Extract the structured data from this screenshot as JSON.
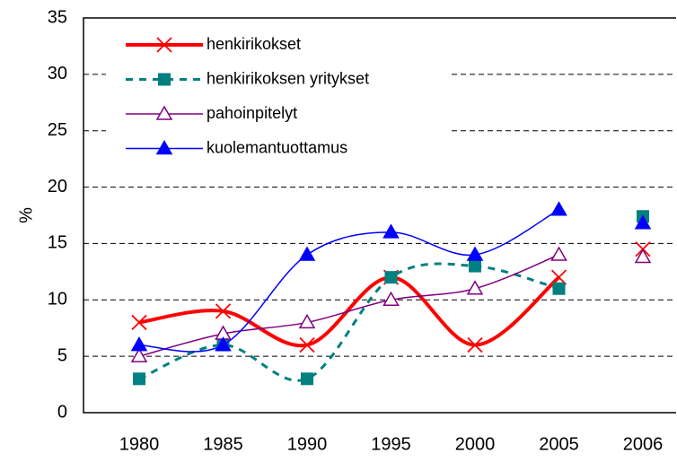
{
  "chart_data": {
    "type": "line",
    "ylabel": "%",
    "categories": [
      "1980",
      "1985",
      "1990",
      "1995",
      "2000",
      "2005",
      "2006"
    ],
    "series": [
      {
        "name": "henkirikokset",
        "color": "#ff0000",
        "marker": "x",
        "line_width": 4,
        "dashed": false,
        "values": [
          8,
          9,
          6,
          12,
          6,
          12,
          14.5
        ]
      },
      {
        "name": "henkirikoksen yritykset",
        "color": "#008080",
        "marker": "square",
        "line_width": 3,
        "dashed": true,
        "values": [
          3,
          6,
          3,
          12,
          13,
          11,
          17.4
        ]
      },
      {
        "name": "pahoinpitelyt",
        "color": "#800080",
        "marker": "triangle-open",
        "line_width": 1.5,
        "dashed": false,
        "values": [
          5,
          7,
          8,
          10,
          11,
          14,
          13.8
        ]
      },
      {
        "name": "kuolemantuottamus",
        "color": "#0000ff",
        "marker": "triangle",
        "line_width": 1.5,
        "dashed": false,
        "values": [
          6,
          6,
          14,
          16,
          14,
          18,
          16.8
        ]
      }
    ],
    "connected_points": 6,
    "smooth": true,
    "ylim": [
      0,
      35
    ],
    "yticks": [
      0,
      5,
      10,
      15,
      20,
      25,
      30,
      35
    ],
    "grid": true,
    "legend": "upper left"
  }
}
